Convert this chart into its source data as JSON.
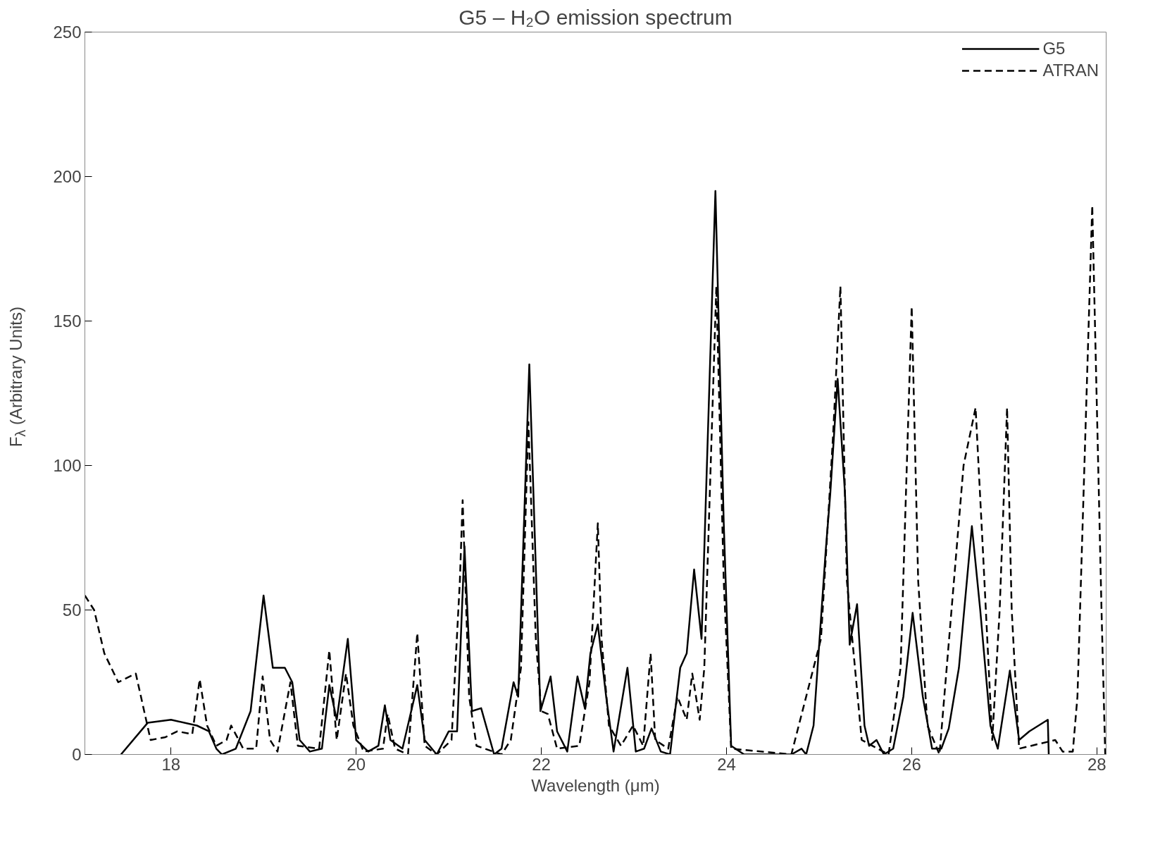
{
  "chart_data": {
    "type": "line",
    "title": "G5 – H₂O emission spectrum",
    "xlabel": "Wavelength (μm)",
    "ylabel": "F$_{λ}$ (Arbitrary Units)",
    "xlim": [
      17.07,
      28.1
    ],
    "xticks": [
      18,
      20,
      22,
      24,
      26,
      28
    ],
    "ylim": [
      0,
      250
    ],
    "yticks": [
      0,
      50,
      100,
      150,
      200,
      250
    ],
    "grid": false,
    "legend": "top right",
    "series": [
      {
        "name": "G5",
        "color": "#000000",
        "line_style": "solid",
        "x": [
          17.46,
          17.75,
          18.0,
          18.28,
          18.41,
          18.49,
          18.55,
          18.7,
          18.86,
          19.0,
          19.1,
          19.23,
          19.31,
          19.39,
          19.5,
          19.63,
          19.71,
          19.79,
          19.91,
          20.0,
          20.13,
          20.24,
          20.31,
          20.37,
          20.5,
          20.66,
          20.74,
          20.87,
          21.0,
          21.09,
          21.17,
          21.25,
          21.35,
          21.49,
          21.57,
          21.7,
          21.75,
          21.87,
          21.99,
          22.1,
          22.17,
          22.28,
          22.39,
          22.47,
          22.53,
          22.61,
          22.7,
          22.78,
          22.93,
          23.02,
          23.11,
          23.19,
          23.29,
          23.39,
          23.5,
          23.57,
          23.65,
          23.73,
          23.88,
          23.97,
          24.05,
          24.19,
          24.7,
          24.81,
          24.86,
          24.94,
          25.07,
          25.12,
          25.2,
          25.28,
          25.33,
          25.41,
          25.49,
          25.54,
          25.62,
          25.7,
          25.8,
          25.91,
          26.01,
          26.12,
          26.22,
          26.32,
          26.4,
          26.51,
          26.65,
          26.74,
          26.85,
          26.93,
          27.06,
          27.16,
          27.27,
          27.47,
          27.48
        ],
        "values": [
          0,
          11,
          12,
          10,
          8,
          2,
          0,
          2,
          15,
          55,
          30,
          30,
          25,
          5,
          1,
          2,
          24,
          12,
          40,
          5,
          1,
          3,
          17,
          5,
          2,
          24,
          5,
          0,
          8,
          8,
          72,
          15,
          16,
          0,
          2,
          25,
          20,
          135,
          15,
          27,
          8,
          1,
          27,
          16,
          35,
          45,
          20,
          1,
          30,
          1,
          2,
          9,
          1,
          0,
          30,
          35,
          64,
          40,
          195,
          80,
          3,
          0,
          0,
          2,
          0,
          10,
          70,
          90,
          130,
          90,
          38,
          52,
          10,
          3,
          5,
          0,
          2,
          20,
          49,
          20,
          2,
          2,
          9,
          30,
          79,
          50,
          10,
          2,
          29,
          5,
          8,
          12,
          0
        ]
      },
      {
        "name": "ATRAN",
        "color": "#000000",
        "line_style": "dashed",
        "x": [
          17.07,
          17.17,
          17.28,
          17.43,
          17.62,
          17.78,
          17.94,
          18.07,
          18.23,
          18.31,
          18.39,
          18.49,
          18.6,
          18.65,
          18.78,
          18.92,
          18.99,
          19.07,
          19.15,
          19.29,
          19.37,
          19.6,
          19.71,
          19.79,
          19.89,
          19.97,
          20.08,
          20.29,
          20.34,
          20.42,
          20.56,
          20.66,
          20.74,
          20.87,
          21.03,
          21.12,
          21.15,
          21.22,
          21.3,
          21.57,
          21.67,
          21.78,
          21.86,
          21.94,
          22.0,
          22.07,
          22.17,
          22.41,
          22.52,
          22.61,
          22.65,
          22.73,
          22.86,
          22.99,
          23.1,
          23.18,
          23.23,
          23.37,
          23.47,
          23.57,
          23.63,
          23.71,
          23.76,
          23.89,
          23.97,
          24.05,
          24.7,
          25.02,
          25.15,
          25.23,
          25.3,
          25.46,
          25.75,
          25.88,
          26.0,
          26.07,
          26.17,
          26.3,
          26.56,
          26.69,
          26.77,
          26.87,
          26.95,
          27.03,
          27.08,
          27.16,
          27.55,
          27.63,
          27.74,
          27.79,
          27.95,
          28.05,
          28.09
        ],
        "values": [
          55,
          50,
          35,
          25,
          28,
          5,
          6,
          8,
          7,
          26,
          10,
          3,
          5,
          10,
          2,
          2,
          27,
          5,
          1,
          25,
          3,
          2,
          36,
          5,
          28,
          10,
          1,
          2,
          14,
          2,
          0,
          42,
          3,
          0,
          5,
          60,
          88,
          20,
          3,
          0,
          5,
          30,
          115,
          40,
          15,
          14,
          2,
          3,
          25,
          80,
          40,
          10,
          3,
          10,
          3,
          35,
          5,
          2,
          20,
          12,
          28,
          12,
          30,
          162,
          60,
          2,
          0,
          40,
          110,
          162,
          60,
          5,
          0,
          30,
          155,
          60,
          10,
          0,
          100,
          120,
          70,
          5,
          50,
          120,
          50,
          2,
          5,
          1,
          1,
          20,
          190,
          50,
          0
        ]
      }
    ]
  }
}
